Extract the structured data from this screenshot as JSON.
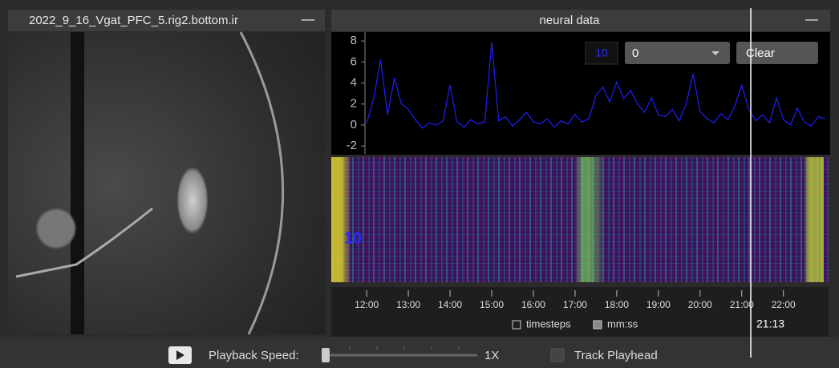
{
  "video_panel": {
    "title": "2022_9_16_Vgat_PFC_5.rig2.bottom.ir",
    "minimize": "—"
  },
  "neural_panel": {
    "title": "neural data",
    "minimize": "—",
    "controls": {
      "index": "10",
      "dropdown": "0",
      "clear": "Clear"
    },
    "heatmap_label": "10",
    "options": [
      "timesteps",
      "mm:ss"
    ]
  },
  "chart_data": {
    "type": "line",
    "x": [
      720,
      730,
      740,
      750,
      760,
      770,
      780,
      790,
      800,
      810,
      820,
      830,
      840,
      850,
      860,
      870,
      880,
      890,
      900,
      910,
      920,
      930,
      940,
      950,
      960,
      970,
      980,
      990,
      1000,
      1010,
      1020,
      1030,
      1040,
      1050,
      1060,
      1070,
      1080,
      1090,
      1100,
      1110,
      1120,
      1130,
      1140,
      1150,
      1160,
      1170,
      1180,
      1190,
      1200,
      1210,
      1220,
      1230,
      1240,
      1250,
      1260,
      1270,
      1280,
      1290,
      1300,
      1310,
      1320,
      1330,
      1340,
      1350,
      1360,
      1370,
      1380
    ],
    "values": [
      0.2,
      2.5,
      6.2,
      1.0,
      4.5,
      2.0,
      1.5,
      0.5,
      -0.3,
      0.2,
      0.0,
      0.4,
      3.8,
      0.3,
      -0.2,
      0.5,
      0.1,
      0.3,
      7.9,
      0.4,
      0.8,
      -0.1,
      0.5,
      1.2,
      0.3,
      0.1,
      0.6,
      -0.2,
      0.4,
      0.1,
      1.0,
      0.3,
      0.6,
      2.8,
      3.6,
      2.2,
      4.1,
      2.5,
      3.3,
      2.0,
      1.2,
      2.6,
      1.0,
      0.8,
      1.5,
      0.4,
      2.0,
      4.9,
      1.3,
      0.6,
      0.2,
      1.1,
      0.5,
      1.8,
      3.8,
      1.5,
      0.4,
      1.0,
      0.2,
      2.6,
      0.5,
      0.0,
      1.6,
      0.3,
      -0.1,
      0.8,
      0.6
    ],
    "color": "#1f1fff",
    "xlim": [
      669,
      1385
    ],
    "ylim": [
      -2.75,
      8.85
    ],
    "yticks": [
      -2,
      0,
      2,
      4,
      6,
      8
    ],
    "xticks": [
      {
        "value": 720,
        "label": "12:00"
      },
      {
        "value": 780,
        "label": "13:00"
      },
      {
        "value": 840,
        "label": "14:00"
      },
      {
        "value": 900,
        "label": "15:00"
      },
      {
        "value": 960,
        "label": "16:00"
      },
      {
        "value": 1020,
        "label": "17:00"
      },
      {
        "value": 1080,
        "label": "18:00"
      },
      {
        "value": 1140,
        "label": "19:00"
      },
      {
        "value": 1200,
        "label": "20:00"
      },
      {
        "value": 1260,
        "label": "21:00"
      },
      {
        "value": 1320,
        "label": "22:00"
      }
    ],
    "playhead": {
      "value": 1273,
      "label": "21:13"
    }
  },
  "playback": {
    "speed_label": "Playback Speed:",
    "speed": "1X",
    "track": "Track Playhead"
  }
}
